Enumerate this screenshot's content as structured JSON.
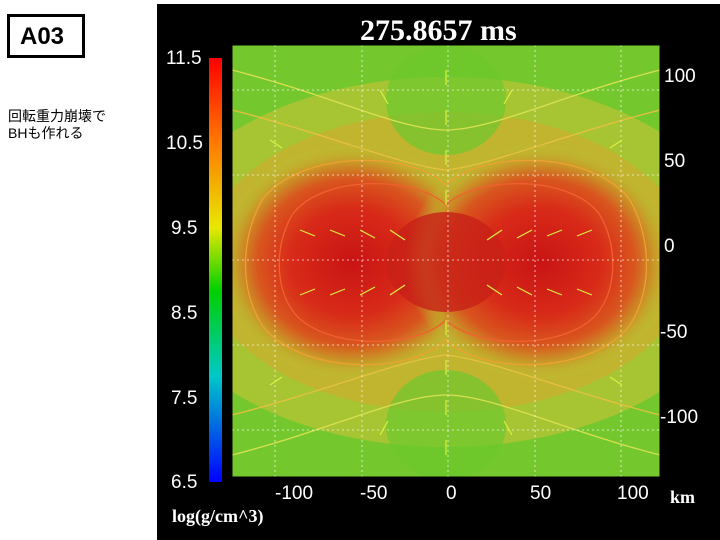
{
  "label": "A03",
  "note_line1": "回転重力崩壊で",
  "note_line2": "BHも作れる",
  "time": "275.8657 ms",
  "colorbar_ticks": [
    "11.5",
    "10.5",
    "9.5",
    "8.5",
    "7.5",
    "6.5"
  ],
  "x_ticks": [
    "-100",
    "-50",
    "0",
    "50",
    "100"
  ],
  "y_ticks": [
    "100",
    "50",
    "0",
    "-50",
    "-100"
  ],
  "x_unit": "km",
  "colorbar_unit": "log(g/cm^3)"
}
